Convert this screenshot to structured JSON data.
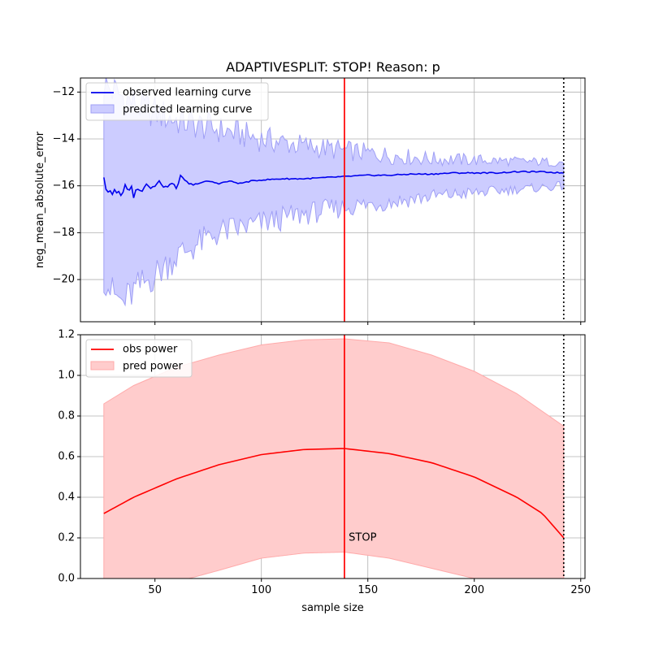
{
  "title": "ADAPTIVESPLIT: STOP!  Reason: p",
  "colors": {
    "observed": "#0000ee",
    "band_fill": "#ccccff",
    "band_edge": "#9f9ff5",
    "power": "#ff0000",
    "power_band_fill": "#ffcccc",
    "power_band_edge": "#ffaaaa",
    "stop_line": "#ff0000",
    "end_line": "#000000",
    "grid": "#b0b0b0"
  },
  "chart_data": [
    {
      "type": "line",
      "ylabel": "neg_mean_absolute_error",
      "xlim": [
        15,
        252
      ],
      "ylim": [
        -21.8,
        -11.4
      ],
      "xticks": [
        50,
        100,
        150,
        200,
        250
      ],
      "yticks": [
        -12,
        -14,
        -16,
        -18,
        -20
      ],
      "ytick_labels": [
        "−12",
        "−14",
        "−16",
        "−18",
        "−20"
      ],
      "grid": true,
      "legend": "upper-left",
      "series": [
        {
          "name": "observed learning curve",
          "kind": "line",
          "x_range": [
            26,
            242
          ],
          "profile": [
            [
              26,
              -15.7
            ],
            [
              27,
              -16.1
            ],
            [
              28,
              -16.3
            ],
            [
              29,
              -16.2
            ],
            [
              30,
              -16.4
            ],
            [
              31,
              -16.2
            ],
            [
              32,
              -16.3
            ],
            [
              33,
              -16.2
            ],
            [
              34,
              -16.4
            ],
            [
              35,
              -16.3
            ],
            [
              36,
              -16.0
            ],
            [
              37,
              -16.1
            ],
            [
              38,
              -16.2
            ],
            [
              39,
              -16.0
            ],
            [
              40,
              -16.5
            ],
            [
              41,
              -16.2
            ],
            [
              42,
              -16.1
            ],
            [
              44,
              -16.2
            ],
            [
              46,
              -15.9
            ],
            [
              48,
              -16.1
            ],
            [
              50,
              -16.0
            ],
            [
              52,
              -15.8
            ],
            [
              54,
              -16.1
            ],
            [
              56,
              -16.0
            ],
            [
              58,
              -15.9
            ],
            [
              60,
              -16.1
            ],
            [
              62,
              -15.6
            ],
            [
              64,
              -15.8
            ],
            [
              66,
              -15.9
            ],
            [
              68,
              -16.0
            ],
            [
              70,
              -15.9
            ],
            [
              75,
              -15.8
            ],
            [
              80,
              -15.9
            ],
            [
              85,
              -15.8
            ],
            [
              90,
              -15.9
            ],
            [
              95,
              -15.8
            ],
            [
              100,
              -15.75
            ],
            [
              110,
              -15.7
            ],
            [
              120,
              -15.7
            ],
            [
              130,
              -15.65
            ],
            [
              140,
              -15.6
            ],
            [
              150,
              -15.55
            ],
            [
              160,
              -15.55
            ],
            [
              170,
              -15.5
            ],
            [
              180,
              -15.5
            ],
            [
              190,
              -15.45
            ],
            [
              200,
              -15.45
            ],
            [
              210,
              -15.45
            ],
            [
              220,
              -15.4
            ],
            [
              230,
              -15.4
            ],
            [
              242,
              -15.45
            ]
          ]
        },
        {
          "name": "predicted learning curve",
          "kind": "band",
          "upper_profile": [
            [
              26,
              -11.7
            ],
            [
              40,
              -12.5
            ],
            [
              60,
              -13.2
            ],
            [
              80,
              -13.6
            ],
            [
              100,
              -14.0
            ],
            [
              120,
              -14.3
            ],
            [
              140,
              -14.5
            ],
            [
              160,
              -14.7
            ],
            [
              180,
              -14.85
            ],
            [
              200,
              -14.9
            ],
            [
              220,
              -14.95
            ],
            [
              242,
              -15.0
            ]
          ],
          "lower_profile": [
            [
              26,
              -19.8
            ],
            [
              30,
              -20.6
            ],
            [
              35,
              -21.0
            ],
            [
              40,
              -20.5
            ],
            [
              50,
              -19.8
            ],
            [
              60,
              -19.0
            ],
            [
              80,
              -18.0
            ],
            [
              100,
              -17.6
            ],
            [
              120,
              -17.2
            ],
            [
              140,
              -16.9
            ],
            [
              160,
              -16.7
            ],
            [
              180,
              -16.45
            ],
            [
              200,
              -16.3
            ],
            [
              220,
              -16.15
            ],
            [
              242,
              -16.0
            ]
          ]
        }
      ],
      "vlines": [
        {
          "x": 139,
          "style": "solid",
          "color_key": "stop_line"
        },
        {
          "x": 242,
          "style": "dotted",
          "color_key": "end_line"
        }
      ]
    },
    {
      "type": "line",
      "xlabel": "sample size",
      "xlim": [
        15,
        252
      ],
      "ylim": [
        0.0,
        1.2
      ],
      "xticks": [
        50,
        100,
        150,
        200,
        250
      ],
      "yticks": [
        0.0,
        0.2,
        0.4,
        0.6,
        0.8,
        1.0,
        1.2
      ],
      "ytick_labels": [
        "0.0",
        "0.2",
        "0.4",
        "0.6",
        "0.8",
        "1.0",
        "1.2"
      ],
      "grid": true,
      "legend": "upper-left",
      "series": [
        {
          "name": "obs power",
          "kind": "line",
          "x": [
            26,
            40,
            60,
            80,
            100,
            120,
            139,
            160,
            180,
            200,
            220,
            232,
            242
          ],
          "y": [
            0.32,
            0.4,
            0.49,
            0.56,
            0.61,
            0.635,
            0.64,
            0.615,
            0.57,
            0.5,
            0.4,
            0.32,
            0.2
          ]
        },
        {
          "name": "pred power",
          "kind": "band",
          "x": [
            26,
            40,
            60,
            80,
            100,
            120,
            139,
            160,
            180,
            200,
            220,
            242
          ],
          "upper": [
            0.86,
            0.95,
            1.04,
            1.1,
            1.15,
            1.175,
            1.18,
            1.16,
            1.1,
            1.02,
            0.91,
            0.75
          ],
          "lower_profile": [
            [
              26,
              0.0
            ],
            [
              66,
              0.0
            ],
            [
              80,
              0.04
            ],
            [
              100,
              0.1
            ],
            [
              120,
              0.125
            ],
            [
              139,
              0.13
            ],
            [
              160,
              0.1
            ],
            [
              180,
              0.05
            ],
            [
              200,
              0.0
            ],
            [
              242,
              0.0
            ]
          ]
        }
      ],
      "vlines": [
        {
          "x": 139,
          "style": "solid",
          "color_key": "stop_line"
        },
        {
          "x": 242,
          "style": "dotted",
          "color_key": "end_line"
        }
      ],
      "annotations": [
        {
          "text": "STOP",
          "x": 141,
          "y": 0.2
        }
      ]
    }
  ]
}
